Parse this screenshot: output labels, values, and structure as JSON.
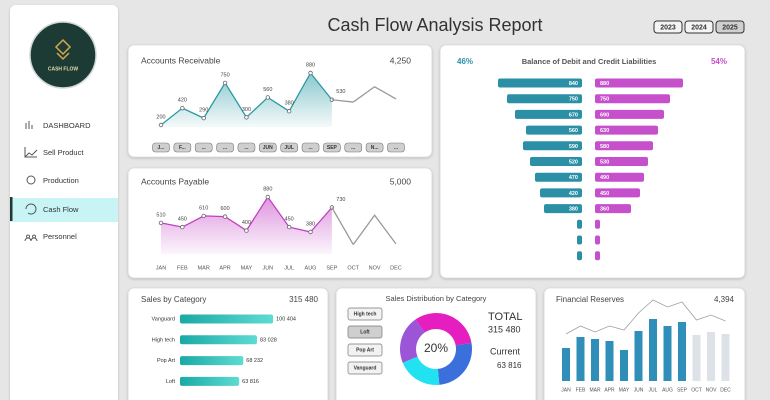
{
  "header": {
    "title": "Cash Flow Analysis Report",
    "years": [
      "2023",
      "2024",
      "2025"
    ],
    "selected_year": 2
  },
  "sidebar": {
    "logo": "CASH FLOW",
    "nav": [
      "DASHBOARD",
      "Sell Product",
      "Production",
      "Cash Flow",
      "Personnel"
    ],
    "active": 3
  },
  "chart_data": [
    {
      "type": "line",
      "title": "Accounts Receivable",
      "total": {
        "value": 4250,
        "label": "4,250"
      },
      "categories": [
        "J...",
        "F...",
        "...",
        "...",
        "...",
        "JUN",
        "JUL",
        "...",
        "SEP",
        "...",
        "N...",
        "..."
      ],
      "series": [
        {
          "color": "#2a9aa5",
          "area": true,
          "data_labels": true,
          "values": [
            200,
            420,
            290,
            750,
            300,
            560,
            380,
            880,
            530,
            null,
            null,
            null
          ]
        },
        {
          "color": "#9a9a9a",
          "values": [
            null,
            null,
            null,
            null,
            null,
            null,
            null,
            null,
            null,
            500,
            700,
            540
          ]
        }
      ],
      "ylim": [
        0,
        1000
      ]
    },
    {
      "type": "line",
      "title": "Accounts Payable",
      "total": {
        "value": 5000,
        "label": "5,000"
      },
      "categories": [
        "JAN",
        "FEB",
        "MAR",
        "APR",
        "MAY",
        "JUN",
        "JUL",
        "AUG",
        "SEP",
        "OCT",
        "NOV",
        "DEC"
      ],
      "series": [
        {
          "color": "#c23fc4",
          "area": true,
          "data_labels": true,
          "values": [
            510,
            450,
            610,
            600,
            400,
            880,
            450,
            380,
            730,
            null,
            null,
            null
          ]
        },
        {
          "color": "#9a9a9a",
          "values": [
            null,
            null,
            null,
            null,
            null,
            null,
            null,
            null,
            null,
            200,
            620,
            210
          ]
        }
      ],
      "ylim": [
        0,
        1000
      ]
    },
    {
      "type": "diverging-bar",
      "title": "Balance of Debit and Credit Liabilities",
      "left_share": {
        "value": 46,
        "label": "46%"
      },
      "right_share": {
        "value": 54,
        "label": "54%"
      },
      "series": [
        {
          "color": "#2b8fa6",
          "values": [
            840,
            750,
            670,
            560,
            590,
            520,
            470,
            420,
            380,
            50,
            50,
            50
          ]
        },
        {
          "color": "#c64fcb",
          "values": [
            880,
            750,
            690,
            630,
            580,
            530,
            490,
            450,
            360,
            50,
            50,
            50
          ]
        }
      ],
      "xlim": [
        0,
        1000
      ]
    },
    {
      "type": "hbar",
      "title": "Sales by Category",
      "total": {
        "value": 315480,
        "label": "315 480"
      },
      "categories": [
        "Vanguard",
        "High tech",
        "Pop Art",
        "Loft"
      ],
      "values": [
        100404,
        83028,
        68232,
        63816
      ],
      "value_labels": [
        "100 404",
        "83 028",
        "68 232",
        "63 816"
      ],
      "xlim": [
        0,
        110000
      ]
    },
    {
      "type": "donut",
      "title": "Sales Distribution by Category",
      "categories": [
        "High tech",
        "Loft",
        "Pop Art",
        "Vanguard"
      ],
      "values": [
        83028,
        63816,
        68232,
        100404
      ],
      "colors": [
        "#3b6fdc",
        "#22e2f2",
        "#9b55d6",
        "#e51ec0"
      ],
      "selected": 1,
      "center_label": {
        "value": 20,
        "label": "20%"
      },
      "total_title": "TOTAL",
      "total": {
        "value": 315480,
        "label": "315 480"
      },
      "current_title": "Current",
      "current": {
        "value": 63816,
        "label": "63 816"
      }
    },
    {
      "type": "bar",
      "title": "Financial Reserves",
      "total": {
        "value": 4394,
        "label": "4,394"
      },
      "categories": [
        "JAN",
        "FEB",
        "MAR",
        "APR",
        "MAY",
        "JUN",
        "JUL",
        "AUG",
        "SEP",
        "OCT",
        "NOV",
        "DEC"
      ],
      "series": [
        {
          "color": "#2f8fb8",
          "values": [
            33,
            44,
            42,
            40,
            31,
            50,
            62,
            55,
            59,
            null,
            null,
            null
          ]
        },
        {
          "color": "#dde2e8",
          "values": [
            null,
            null,
            null,
            null,
            null,
            null,
            null,
            null,
            null,
            46,
            49,
            47
          ]
        },
        {
          "type": "line",
          "color": "#a0a0a0",
          "values": [
            47,
            55,
            49,
            55,
            51,
            68,
            81,
            74,
            79,
            61,
            66,
            60
          ]
        }
      ],
      "ylim": [
        0,
        100
      ]
    }
  ]
}
